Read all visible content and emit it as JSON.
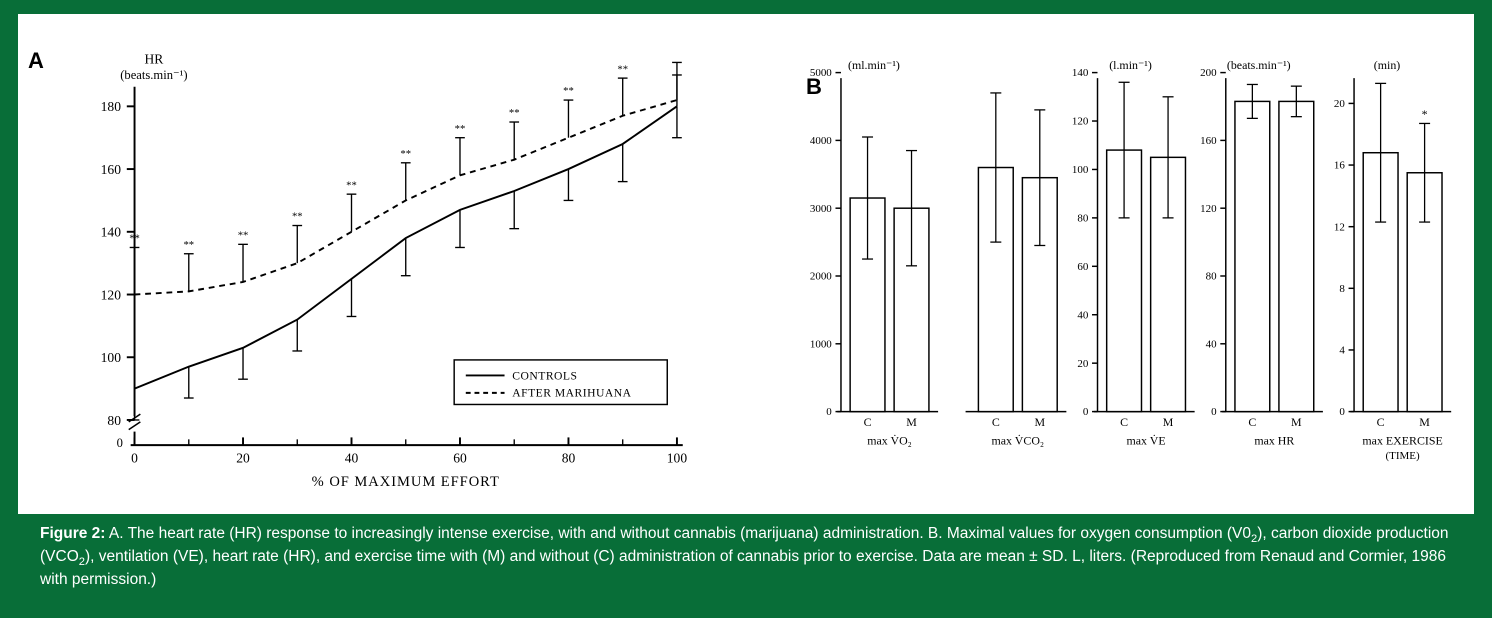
{
  "colors": {
    "page_bg": "#086e38",
    "panel_bg": "#ffffff",
    "ink": "#000000",
    "caption_text": "#ffffff"
  },
  "typography": {
    "main_font": "Arial, Helvetica, sans-serif",
    "chart_font": "serif",
    "chart_label_size_pt": 11,
    "panel_letter_size_pt": 18,
    "caption_size_pt": 12
  },
  "panelA": {
    "letter": "A",
    "type": "line",
    "y_axis": {
      "title_line1": "HR",
      "title_line2": "(beats.min⁻¹)",
      "ticks": [
        80,
        100,
        120,
        140,
        160,
        180
      ],
      "break_below": 0
    },
    "x_axis": {
      "title": "% OF MAXIMUM EFFORT",
      "ticks": [
        0,
        20,
        40,
        60,
        80,
        100
      ]
    },
    "legend": {
      "items": [
        {
          "label": "CONTROLS",
          "style": "solid"
        },
        {
          "label": "AFTER MARIHUANA",
          "style": "dashed"
        }
      ],
      "border": true,
      "pos": "lower-right"
    },
    "series": {
      "controls": {
        "style": "solid",
        "width": 2.0,
        "color": "#000000",
        "x": [
          0,
          10,
          20,
          30,
          40,
          50,
          60,
          70,
          80,
          90,
          100
        ],
        "y": [
          90,
          97,
          103,
          112,
          125,
          138,
          147,
          153,
          160,
          168,
          180
        ],
        "err": [
          10,
          10,
          10,
          10,
          12,
          12,
          12,
          12,
          10,
          12,
          10
        ],
        "sig": [
          "**",
          "**",
          "**",
          "**",
          "**",
          "**",
          "**",
          "**",
          "**",
          "**",
          ""
        ]
      },
      "marihuana": {
        "style": "dashed",
        "width": 2.0,
        "dash": "6,5",
        "color": "#000000",
        "x": [
          0,
          10,
          20,
          30,
          40,
          50,
          60,
          70,
          80,
          90,
          100
        ],
        "y": [
          120,
          121,
          124,
          130,
          140,
          150,
          158,
          163,
          170,
          177,
          182
        ],
        "err": [
          15,
          0,
          0,
          0,
          0,
          0,
          0,
          0,
          0,
          0,
          0
        ]
      }
    }
  },
  "panelB": {
    "letter": "B",
    "type": "bar",
    "bar_color": "#ffffff",
    "bar_stroke": "#000000",
    "bar_width": 0.8,
    "group_gap": 0.6,
    "groups": [
      {
        "id": "vo2",
        "x_label": "max V̇O₂",
        "unit": "(ml.min⁻¹)",
        "y_ticks": [
          0,
          1000,
          2000,
          3000,
          4000,
          5000
        ],
        "y_max": 5000,
        "bars": [
          {
            "cond": "C",
            "val": 3150,
            "err": 900
          },
          {
            "cond": "M",
            "val": 3000,
            "err": 850
          }
        ]
      },
      {
        "id": "vco2",
        "x_label": "max V̇CO₂",
        "unit": "",
        "y_ticks": [],
        "y_max": 5000,
        "bars": [
          {
            "cond": "C",
            "val": 3600,
            "err": 1100
          },
          {
            "cond": "M",
            "val": 3450,
            "err": 1000
          }
        ]
      },
      {
        "id": "ve",
        "x_label": "max V̇E",
        "unit": "(l.min⁻¹)",
        "y_ticks": [
          0,
          20,
          40,
          60,
          80,
          100,
          120,
          140
        ],
        "y_max": 140,
        "bars": [
          {
            "cond": "C",
            "val": 108,
            "err": 28
          },
          {
            "cond": "M",
            "val": 105,
            "err": 25
          }
        ]
      },
      {
        "id": "hr",
        "x_label": "max HR",
        "unit": "(beats.min⁻¹)",
        "y_ticks": [
          0,
          40,
          80,
          120,
          160,
          200
        ],
        "y_max": 200,
        "bars": [
          {
            "cond": "C",
            "val": 183,
            "err": 10
          },
          {
            "cond": "M",
            "val": 183,
            "err": 9
          }
        ]
      },
      {
        "id": "time",
        "x_label": "max EXERCISE",
        "x_label2": "(TIME)",
        "unit": "(min)",
        "y_ticks": [
          0,
          4,
          8,
          12,
          16,
          20
        ],
        "y_max": 22,
        "bars": [
          {
            "cond": "C",
            "val": 16.8,
            "err": 4.5
          },
          {
            "cond": "M",
            "val": 15.5,
            "err": 3.2,
            "sig": "*"
          }
        ]
      }
    ]
  },
  "caption": {
    "lead": "Figure 2:",
    "text_parts": [
      " A. The heart rate (HR) response to increasingly intense exercise, with and without cannabis (marijuana) administration. B.  Maximal values for oxygen consumption (V0",
      "), carbon dioxide production (VCO",
      "), ventilation (VE), heart rate (HR), and exercise time with (M) and without (C) administration of cannabis prior to exercise. Data are mean ± SD. L, liters. (Reproduced from Renaud and Cormier, 1986 with permission.)"
    ],
    "sub1": "2",
    "sub2": "2"
  }
}
